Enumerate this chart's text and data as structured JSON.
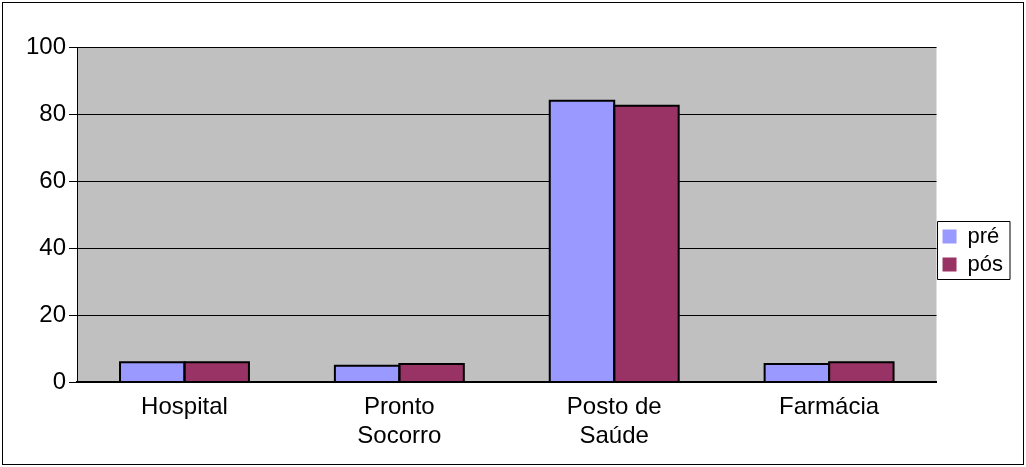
{
  "chart_data": {
    "type": "bar",
    "categories": [
      "Hospital",
      "Pronto Socorro",
      "Posto de Saúde",
      "Farmácia"
    ],
    "series": [
      {
        "name": "pré",
        "color": "#9999ff",
        "values": [
          6,
          5,
          84,
          5.5
        ]
      },
      {
        "name": "pós",
        "color": "#993366",
        "values": [
          6,
          5.5,
          82.5,
          6
        ]
      }
    ],
    "ylim": [
      0,
      100
    ],
    "yticks": [
      0,
      20,
      40,
      60,
      80,
      100
    ],
    "grid": "y",
    "legend": "right"
  }
}
